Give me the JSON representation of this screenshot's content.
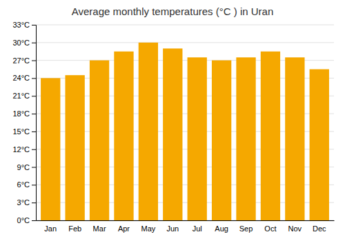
{
  "chart_data": {
    "type": "bar",
    "title": "Average monthly temperatures (°C ) in Uran",
    "categories": [
      "Jan",
      "Feb",
      "Mar",
      "Apr",
      "May",
      "Jun",
      "Jul",
      "Aug",
      "Sep",
      "Oct",
      "Nov",
      "Dec"
    ],
    "values": [
      24.0,
      24.5,
      27.0,
      28.5,
      30.0,
      29.0,
      27.5,
      27.0,
      27.5,
      28.5,
      27.5,
      25.5
    ],
    "color": "#F5A800",
    "ylim": [
      0,
      33
    ],
    "yticks": [
      {
        "value": 0,
        "label": "0°C"
      },
      {
        "value": 3,
        "label": "3°C"
      },
      {
        "value": 6,
        "label": "6°C"
      },
      {
        "value": 9,
        "label": "9°C"
      },
      {
        "value": 12,
        "label": "12°C"
      },
      {
        "value": 15,
        "label": "15°C"
      },
      {
        "value": 18,
        "label": "18°C"
      },
      {
        "value": 21,
        "label": "21°C"
      },
      {
        "value": 24,
        "label": "24°C"
      },
      {
        "value": 27,
        "label": "27°C"
      },
      {
        "value": 30,
        "label": "30°C"
      },
      {
        "value": 33,
        "label": "33°C"
      }
    ],
    "grid": true
  }
}
